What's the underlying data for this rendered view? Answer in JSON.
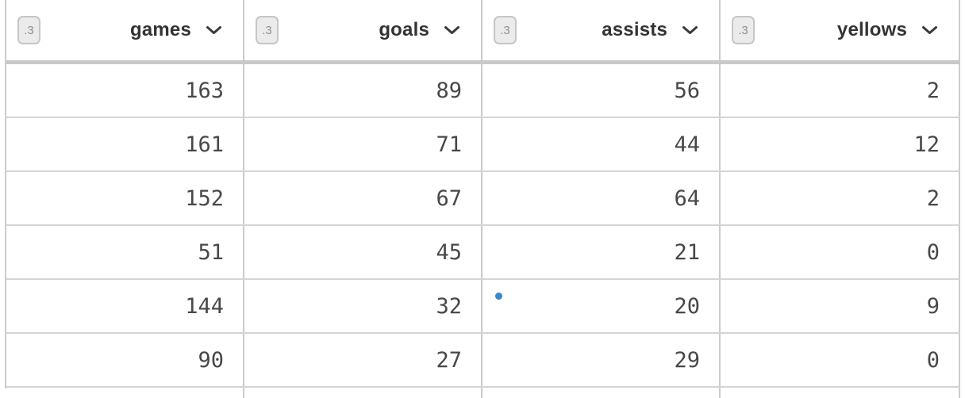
{
  "table": {
    "columns": [
      {
        "badge": ".3",
        "label": "games"
      },
      {
        "badge": ".3",
        "label": "goals"
      },
      {
        "badge": ".3",
        "label": "assists"
      },
      {
        "badge": ".3",
        "label": "yellows"
      }
    ],
    "rows": [
      [
        "163",
        "89",
        "56",
        "2"
      ],
      [
        "161",
        "71",
        "44",
        "12"
      ],
      [
        "152",
        "67",
        "64",
        "2"
      ],
      [
        "51",
        "45",
        "21",
        "0"
      ],
      [
        "144",
        "32",
        "20",
        "9"
      ],
      [
        "90",
        "27",
        "29",
        "0"
      ]
    ],
    "partial_row_visible": true,
    "indicator_dot": {
      "row_index": 4,
      "col_index": 2,
      "color": "#3b87c4"
    },
    "icons": {
      "sort": "chevron-down-icon"
    }
  },
  "colors": {
    "background": "#ffffff",
    "grid_border": "#cbcbcb",
    "header_underline": "#c9c9c9",
    "row_border": "#d4d4d4",
    "header_text": "#333333",
    "cell_text": "#484848",
    "badge_bg": "#ebebeb",
    "badge_border": "#c6c6c6",
    "badge_text": "#8f8f8f",
    "dot_blue": "#3b87c4"
  }
}
